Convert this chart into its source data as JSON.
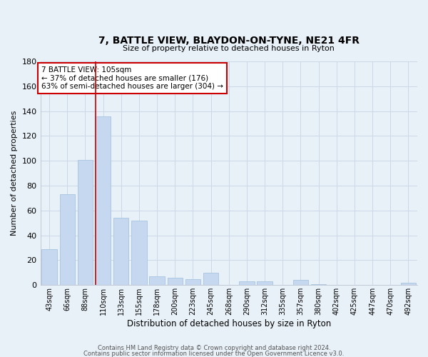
{
  "title": "7, BATTLE VIEW, BLAYDON-ON-TYNE, NE21 4FR",
  "subtitle": "Size of property relative to detached houses in Ryton",
  "xlabel": "Distribution of detached houses by size in Ryton",
  "ylabel": "Number of detached properties",
  "categories": [
    "43sqm",
    "66sqm",
    "88sqm",
    "110sqm",
    "133sqm",
    "155sqm",
    "178sqm",
    "200sqm",
    "223sqm",
    "245sqm",
    "268sqm",
    "290sqm",
    "312sqm",
    "335sqm",
    "357sqm",
    "380sqm",
    "402sqm",
    "425sqm",
    "447sqm",
    "470sqm",
    "492sqm"
  ],
  "values": [
    29,
    73,
    101,
    136,
    54,
    52,
    7,
    6,
    5,
    10,
    0,
    3,
    3,
    0,
    4,
    1,
    0,
    0,
    0,
    0,
    2
  ],
  "bar_color": "#c5d8f0",
  "bar_edge_color": "#a8c4e0",
  "vline_x_index": 3,
  "vline_color": "#cc0000",
  "annotation_text": "7 BATTLE VIEW: 105sqm\n← 37% of detached houses are smaller (176)\n63% of semi-detached houses are larger (304) →",
  "annotation_box_color": "#ffffff",
  "annotation_box_edge_color": "#cc0000",
  "ylim": [
    0,
    180
  ],
  "yticks": [
    0,
    20,
    40,
    60,
    80,
    100,
    120,
    140,
    160,
    180
  ],
  "grid_color": "#ccd8e8",
  "bg_color": "#e8f0f8",
  "footer1": "Contains HM Land Registry data © Crown copyright and database right 2024.",
  "footer2": "Contains public sector information licensed under the Open Government Licence v3.0."
}
